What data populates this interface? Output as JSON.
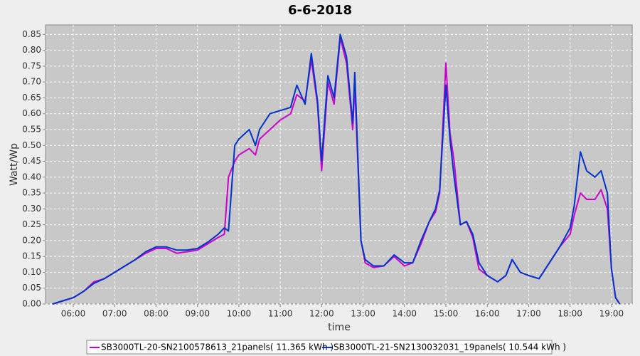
{
  "chart_data": {
    "type": "line",
    "title": "6-6-2018",
    "x_label": "time",
    "y_label": "Watt/Wp",
    "x": [
      5.5,
      5.75,
      6.0,
      6.25,
      6.5,
      6.75,
      7.0,
      7.25,
      7.5,
      7.75,
      8.0,
      8.25,
      8.5,
      8.75,
      9.0,
      9.25,
      9.5,
      9.65,
      9.75,
      9.9,
      10.0,
      10.25,
      10.4,
      10.5,
      10.75,
      11.0,
      11.25,
      11.4,
      11.6,
      11.75,
      11.9,
      12.0,
      12.15,
      12.3,
      12.45,
      12.6,
      12.75,
      12.8,
      12.95,
      13.05,
      13.25,
      13.5,
      13.75,
      14.0,
      14.2,
      14.4,
      14.6,
      14.75,
      14.85,
      15.0,
      15.1,
      15.2,
      15.35,
      15.5,
      15.65,
      15.8,
      16.0,
      16.25,
      16.45,
      16.6,
      16.8,
      17.0,
      17.25,
      17.5,
      17.75,
      18.0,
      18.1,
      18.25,
      18.4,
      18.6,
      18.75,
      18.9,
      19.0,
      19.1,
      19.2
    ],
    "series": [
      {
        "name": "SB3000TL-20-SN2100578613_21panels( 11.365 kWh )",
        "color": "#cc00cc",
        "values": [
          0.0,
          0.01,
          0.02,
          0.04,
          0.07,
          0.08,
          0.1,
          0.12,
          0.14,
          0.16,
          0.175,
          0.175,
          0.16,
          0.165,
          0.17,
          0.19,
          0.21,
          0.22,
          0.4,
          0.45,
          0.47,
          0.49,
          0.47,
          0.52,
          0.55,
          0.58,
          0.6,
          0.66,
          0.64,
          0.77,
          0.63,
          0.42,
          0.7,
          0.63,
          0.84,
          0.76,
          0.55,
          0.69,
          0.2,
          0.13,
          0.115,
          0.12,
          0.15,
          0.12,
          0.13,
          0.19,
          0.26,
          0.29,
          0.35,
          0.76,
          0.54,
          0.45,
          0.25,
          0.26,
          0.21,
          0.11,
          0.09,
          0.07,
          0.09,
          0.14,
          0.1,
          0.09,
          0.08,
          0.13,
          0.18,
          0.22,
          0.28,
          0.35,
          0.33,
          0.33,
          0.36,
          0.3,
          0.11,
          0.02,
          0.0
        ]
      },
      {
        "name": "SB3000TL-21-SN2130032031_19panels( 10.544 kWh )",
        "color": "#0033cc",
        "values": [
          0.0,
          0.01,
          0.02,
          0.04,
          0.065,
          0.08,
          0.1,
          0.12,
          0.14,
          0.165,
          0.18,
          0.18,
          0.17,
          0.17,
          0.175,
          0.195,
          0.22,
          0.24,
          0.23,
          0.5,
          0.52,
          0.55,
          0.5,
          0.55,
          0.6,
          0.61,
          0.62,
          0.69,
          0.63,
          0.79,
          0.64,
          0.45,
          0.72,
          0.65,
          0.85,
          0.78,
          0.57,
          0.73,
          0.2,
          0.14,
          0.12,
          0.12,
          0.155,
          0.13,
          0.13,
          0.2,
          0.26,
          0.3,
          0.36,
          0.69,
          0.52,
          0.4,
          0.25,
          0.26,
          0.22,
          0.13,
          0.09,
          0.07,
          0.09,
          0.14,
          0.1,
          0.09,
          0.08,
          0.13,
          0.18,
          0.24,
          0.31,
          0.48,
          0.42,
          0.4,
          0.42,
          0.35,
          0.11,
          0.02,
          0.0
        ]
      }
    ],
    "xlim": [
      5.33,
      19.5
    ],
    "xticks": [
      {
        "value": 6,
        "label": "06:00"
      },
      {
        "value": 7,
        "label": "07:00"
      },
      {
        "value": 8,
        "label": "08:00"
      },
      {
        "value": 9,
        "label": "09:00"
      },
      {
        "value": 10,
        "label": "10:00"
      },
      {
        "value": 11,
        "label": "11:00"
      },
      {
        "value": 12,
        "label": "12:00"
      },
      {
        "value": 13,
        "label": "13:00"
      },
      {
        "value": 14,
        "label": "14:00"
      },
      {
        "value": 15,
        "label": "15:00"
      },
      {
        "value": 16,
        "label": "16:00"
      },
      {
        "value": 17,
        "label": "17:00"
      },
      {
        "value": 18,
        "label": "18:00"
      },
      {
        "value": 19,
        "label": "19:00"
      }
    ],
    "ylim": [
      0,
      0.88
    ],
    "yticks": [
      {
        "value": 0,
        "label": "0.00"
      },
      0.05,
      {
        "value": 0.1,
        "label": "0.10"
      },
      0.15,
      {
        "value": 0.2,
        "label": "0.20"
      },
      0.25,
      {
        "value": 0.3,
        "label": "0.30"
      },
      0.35,
      {
        "value": 0.4,
        "label": "0.40"
      },
      0.45,
      {
        "value": 0.5,
        "label": "0.50"
      },
      0.55,
      {
        "value": 0.6,
        "label": "0.60"
      },
      0.65,
      {
        "value": 0.7,
        "label": "0.70"
      },
      0.75,
      {
        "value": 0.8,
        "label": "0.80"
      },
      0.85
    ],
    "grid": true,
    "legend": "bottom"
  }
}
